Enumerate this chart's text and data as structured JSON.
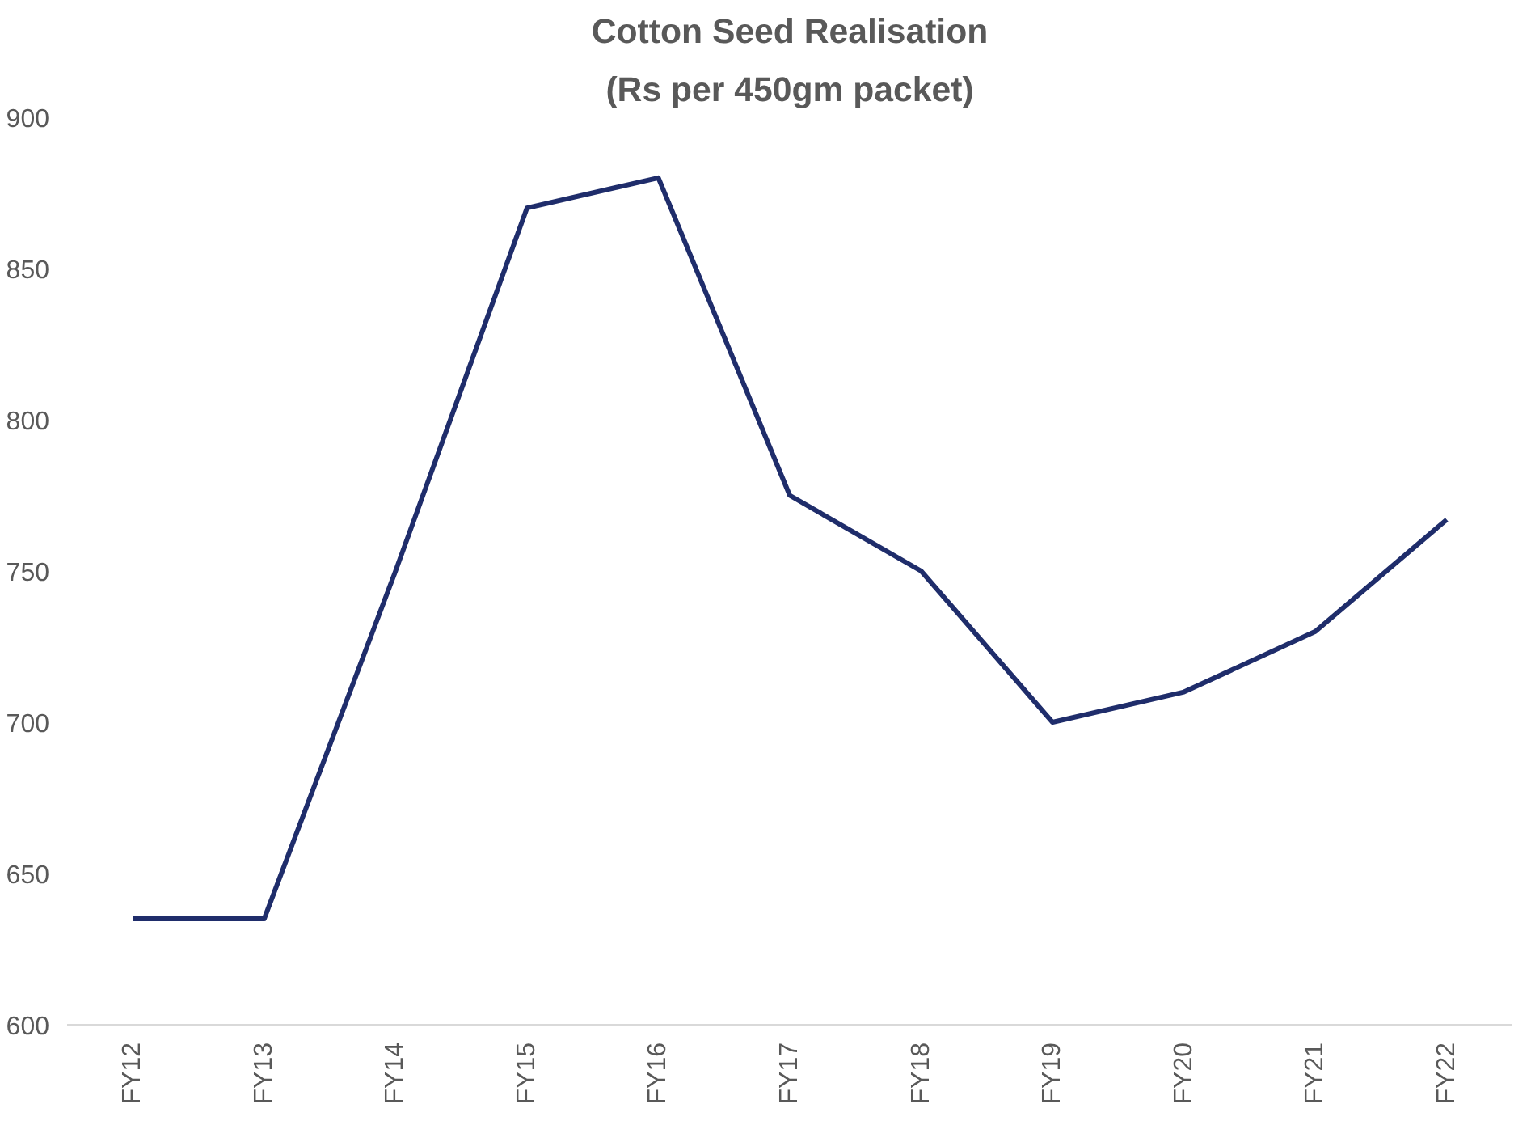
{
  "chart_data": {
    "type": "line",
    "title": "Cotton Seed Realisation",
    "subtitle": "(Rs per 450gm packet)",
    "categories": [
      "FY12",
      "FY13",
      "FY14",
      "FY15",
      "FY16",
      "FY17",
      "FY18",
      "FY19",
      "FY20",
      "FY21",
      "FY22"
    ],
    "series": [
      {
        "color": "#1f2d6b",
        "values": [
          635,
          635,
          750,
          870,
          880,
          775,
          750,
          700,
          710,
          730,
          767
        ]
      }
    ],
    "ylim": [
      600,
      900
    ],
    "yticks": [
      600,
      650,
      700,
      750,
      800,
      850,
      900
    ],
    "grid": false,
    "marker": "none",
    "line_style": "solid"
  }
}
